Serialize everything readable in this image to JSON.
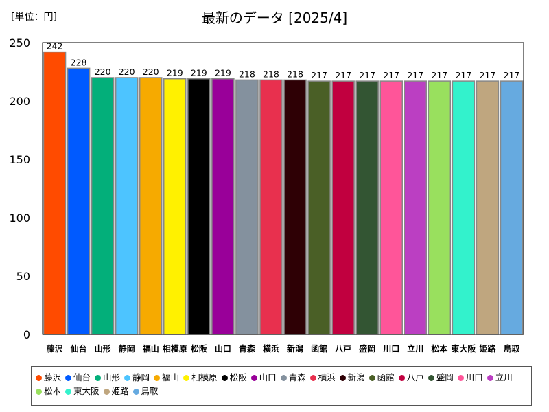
{
  "unit_label": "[単位：円]",
  "chart_data": {
    "type": "bar",
    "title": "最新のデータ [2025/4]",
    "xlabel": "",
    "ylabel": "",
    "ylim": [
      0,
      250
    ],
    "yticks": [
      0,
      50,
      100,
      150,
      200,
      250
    ],
    "grid": false,
    "legend_position": "bottom",
    "categories": [
      "藤沢",
      "仙台",
      "山形",
      "静岡",
      "福山",
      "相模原",
      "松阪",
      "山口",
      "青森",
      "横浜",
      "新潟",
      "函館",
      "八戸",
      "盛岡",
      "川口",
      "立川",
      "松本",
      "東大阪",
      "姫路",
      "鳥取"
    ],
    "values": [
      242,
      228,
      220,
      220,
      220,
      219,
      219,
      219,
      218,
      218,
      218,
      217,
      217,
      217,
      217,
      217,
      217,
      217,
      217,
      217
    ],
    "colors": [
      "#ff4b00",
      "#005aff",
      "#03af7a",
      "#4dc4ff",
      "#f6aa00",
      "#fff100",
      "#000000",
      "#990099",
      "#84919e",
      "#e8304e",
      "#2e0005",
      "#4a5f26",
      "#c1003f",
      "#335533",
      "#ff5599",
      "#bb3fc2",
      "#99e05e",
      "#33f2cc",
      "#bfa67f",
      "#66aae0"
    ]
  }
}
